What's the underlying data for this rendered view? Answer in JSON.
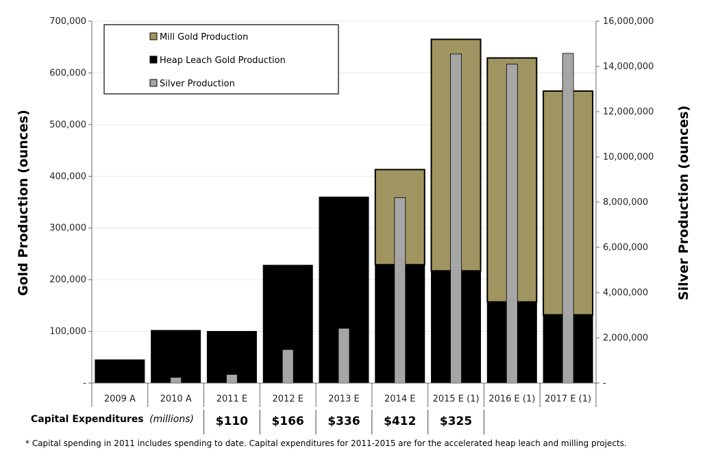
{
  "chart_data": {
    "type": "bar",
    "categories": [
      "2009 A",
      "2010 A",
      "2011 E",
      "2012 E",
      "2013 E",
      "2014 E",
      "2015 E (1)",
      "2016 E (1)",
      "2017 E (1)"
    ],
    "series": [
      {
        "name": "Heap Leach Gold Production",
        "axis": "left",
        "stacked": true,
        "color": "#000000",
        "values": [
          45000,
          102000,
          100000,
          228000,
          360000,
          229000,
          217000,
          157000,
          132000
        ]
      },
      {
        "name": "Mill Gold Production",
        "axis": "left",
        "stacked": true,
        "color": "#a09460",
        "values": [
          0,
          0,
          0,
          0,
          0,
          184000,
          448000,
          472000,
          433000
        ]
      },
      {
        "name": "Silver Production",
        "axis": "right",
        "overlay": true,
        "color": "#a6a6a6",
        "values": [
          0,
          250000,
          380000,
          1480000,
          2420000,
          8200000,
          14550000,
          14100000,
          14580000
        ]
      }
    ],
    "ylabel": "Gold Production (ounces)",
    "y2label": "Silver Production (ounces)",
    "ylim": [
      0,
      700000
    ],
    "y2lim": [
      0,
      16000000
    ],
    "yticks": [
      "-",
      "100,000",
      "200,000",
      "300,000",
      "400,000",
      "500,000",
      "600,000",
      "700,000"
    ],
    "y2ticks": [
      "-",
      "2,000,000",
      "4,000,000",
      "6,000,000",
      "8,000,000",
      "10,000,000",
      "12,000,000",
      "14,000,000",
      "16,000,000"
    ],
    "grid": true,
    "legend_position": "top-left",
    "legend": [
      "Mill Gold Production",
      "Heap Leach Gold Production",
      "Silver Production"
    ]
  },
  "capex": {
    "label": "Capital Expenditures",
    "unit": "(millions)",
    "values": [
      "",
      "",
      "$110",
      "$166",
      "$336",
      "$412",
      "$325",
      "",
      ""
    ]
  },
  "footnote": "* Capital spending in 2011 includes spending to date.  Capital expenditures for 2011-2015 are for the accelerated heap leach and milling projects."
}
